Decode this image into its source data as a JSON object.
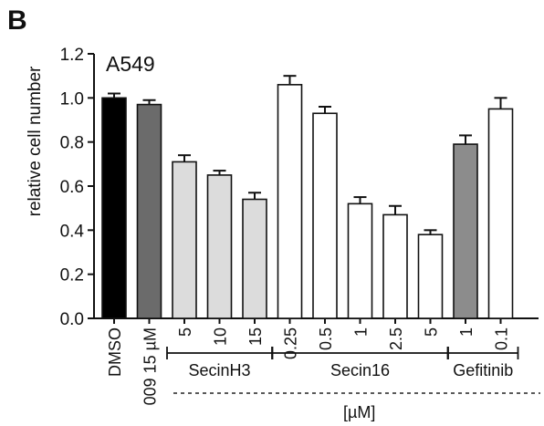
{
  "panel_label": "B",
  "chart_data": {
    "type": "bar",
    "title": "A549",
    "ylabel": "relative cell number",
    "xlabel": "",
    "ylim": [
      0,
      1.2
    ],
    "yticks": [
      0.0,
      0.2,
      0.4,
      0.6,
      0.8,
      1.0,
      1.2
    ],
    "ytick_labels": [
      "0.0",
      "0.2",
      "0.4",
      "0.6",
      "0.8",
      "1.0",
      "1.2"
    ],
    "categories": [
      "DMSO",
      "009 15 µM",
      "5",
      "10",
      "15",
      "0.25",
      "0.5",
      "1",
      "2.5",
      "5",
      "1",
      "0.1"
    ],
    "values": [
      1.0,
      0.97,
      0.71,
      0.65,
      0.54,
      1.06,
      0.93,
      0.52,
      0.47,
      0.38,
      0.79,
      0.95
    ],
    "errors": [
      0.02,
      0.02,
      0.03,
      0.02,
      0.03,
      0.04,
      0.03,
      0.03,
      0.04,
      0.02,
      0.04,
      0.05
    ],
    "bar_colors": [
      "#000000",
      "#6b6b6b",
      "#dcdcdc",
      "#dcdcdc",
      "#dcdcdc",
      "#ffffff",
      "#ffffff",
      "#ffffff",
      "#ffffff",
      "#ffffff",
      "#8c8c8c",
      "#ffffff"
    ],
    "groups": [
      {
        "label": "SecinH3",
        "start": 2,
        "end": 4
      },
      {
        "label": "Secin16",
        "start": 5,
        "end": 9
      },
      {
        "label": "Gefitinib",
        "start": 10,
        "end": 11
      }
    ],
    "unit_label": "[µM]",
    "grid": false
  }
}
